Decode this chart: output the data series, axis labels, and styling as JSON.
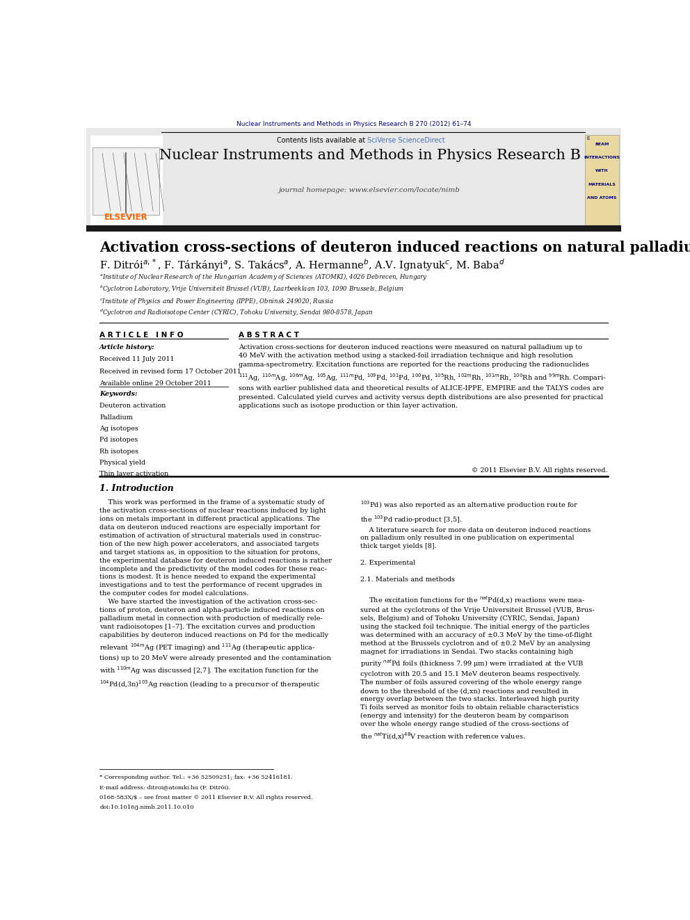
{
  "page_width": 9.92,
  "page_height": 13.23,
  "background_color": "#ffffff",
  "top_journal_ref": "Nuclear Instruments and Methods in Physics Research B 270 (2012) 61–74",
  "top_ref_color": "#00008B",
  "contents_text": "Contents lists available at ",
  "sciverse_text": "SciVerse ScienceDirect",
  "sciverse_color": "#4472C4",
  "journal_title": "Nuclear Instruments and Methods in Physics Research B",
  "journal_homepage": "journal homepage: www.elsevier.com/locate/nimb",
  "elsevier_text": "ELSEVIER",
  "elsevier_color": "#FF6600",
  "cover_lines": [
    "BEAM",
    "INTERACTIONS",
    "WITH",
    "MATERIALS",
    "AND ATOMS"
  ],
  "article_title": "Activation cross-sections of deuteron induced reactions on natural palladium",
  "article_info_title": "A R T I C L E   I N F O",
  "abstract_title": "A B S T R A C T",
  "article_history_title": "Article history:",
  "received": "Received 11 July 2011",
  "revised": "Received in revised form 17 October 2011",
  "available": "Available online 29 October 2011",
  "keywords_title": "Keywords:",
  "keywords": [
    "Deuteron activation",
    "Palladium",
    "Ag isotopes",
    "Pd isotopes",
    "Rh isotopes",
    "Physical yield",
    "Thin layer activation"
  ],
  "copyright": "© 2011 Elsevier B.V. All rights reserved.",
  "intro_title": "1. Introduction",
  "footnote1": "* Corresponding author. Tel.: +36 52509251; fax: +36 52416181.",
  "footnote2": "E-mail address: ditroi@atomki.hu (F. Ditrói).",
  "footnote3": "0168-583X/$ – see front matter © 2011 Elsevier B.V. All rights reserved.",
  "footnote4": "doi:10.1016/j.nimb.2011.10.010",
  "header_bg": "#e8e8e8",
  "dark_bar_color": "#1a1a1a",
  "cover_bg": "#e8d8a0"
}
